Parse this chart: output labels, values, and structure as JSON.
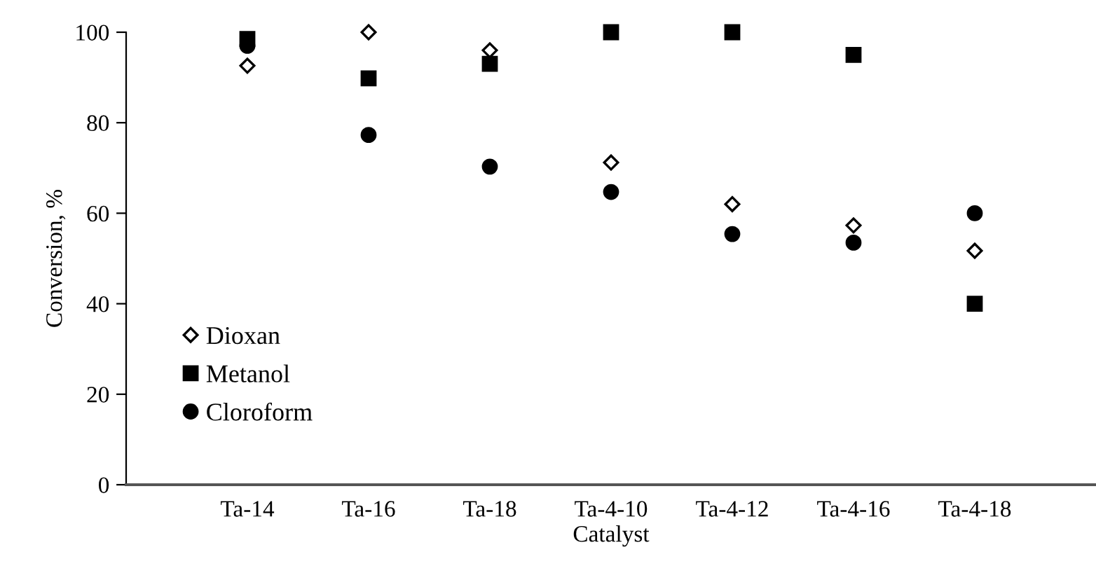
{
  "chart_data": {
    "type": "scatter",
    "xlabel": "Catalyst",
    "ylabel": "Conversion, %",
    "categories": [
      "Ta-14",
      "Ta-16",
      "Ta-18",
      "Ta-4-10",
      "Ta-4-12",
      "Ta-4-16",
      "Ta-4-18"
    ],
    "series": [
      {
        "name": "Dioxan",
        "color": "#000000",
        "marker": "diamond",
        "values": [
          92.6,
          100,
          96,
          71.2,
          62,
          57.3,
          51.7
        ]
      },
      {
        "name": "Metanol",
        "color": "#000000",
        "marker": "square",
        "values": [
          98.5,
          89.8,
          93,
          100,
          100,
          95,
          40
        ]
      },
      {
        "name": "Cloroform",
        "color": "#000000",
        "marker": "circle",
        "values": [
          97,
          77.3,
          70.3,
          64.7,
          55.4,
          53.5,
          60
        ]
      }
    ],
    "ylim": [
      0,
      100
    ],
    "yticks": [
      0,
      20,
      40,
      60,
      80,
      100
    ],
    "grid": false,
    "legend": "bottom left"
  }
}
